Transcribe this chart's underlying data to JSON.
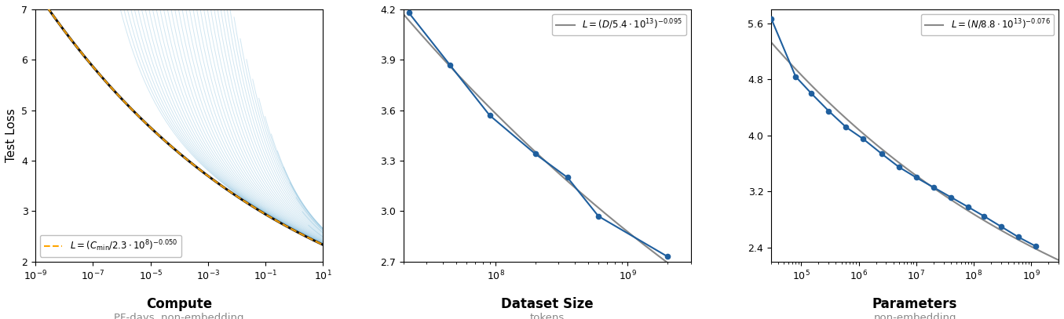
{
  "panel1": {
    "xlabel": "Compute",
    "xlabel_sub": "PF-days, non-embedding",
    "ylabel": "Test Loss",
    "xlim": [
      1e-09,
      10
    ],
    "ylim": [
      2,
      7
    ],
    "yticks": [
      2,
      3,
      4,
      5,
      6,
      7
    ],
    "orange_color": "#FFA500",
    "blue_color": "#7ab8d9",
    "black_color": "#111111",
    "envelope_A": 230000000.0,
    "envelope_exp": -0.05,
    "n_blue_lines": 45
  },
  "panel2": {
    "xlabel": "Dataset Size",
    "xlabel_sub": "tokens",
    "xlim": [
      20000000.0,
      3000000000.0
    ],
    "ylim": [
      2.7,
      4.2
    ],
    "yticks": [
      2.7,
      3.0,
      3.3,
      3.6,
      3.9,
      4.2
    ],
    "data_x": [
      22000000.0,
      45000000.0,
      90000000.0,
      200000000.0,
      350000000.0,
      600000000.0,
      2000000000.0
    ],
    "data_y": [
      4.18,
      3.87,
      3.57,
      3.34,
      3.2,
      2.97,
      2.73
    ],
    "fit_A": 54000000000000.0,
    "fit_exp": -0.095,
    "blue_color": "#1f5f9e",
    "gray_color": "#888888"
  },
  "panel3": {
    "xlabel": "Parameters",
    "xlabel_sub": "non-embedding",
    "xlim": [
      30000.0,
      3000000000.0
    ],
    "ylim": [
      2.2,
      5.8
    ],
    "yticks": [
      2.4,
      3.2,
      4.0,
      4.8,
      5.6
    ],
    "data_x": [
      30000.0,
      80000.0,
      150000.0,
      300000.0,
      600000.0,
      1200000.0,
      2500000.0,
      5000000.0,
      10000000.0,
      20000000.0,
      40000000.0,
      80000000.0,
      150000000.0,
      300000000.0,
      600000000.0,
      1200000000.0
    ],
    "data_y": [
      5.67,
      4.84,
      4.6,
      4.35,
      4.12,
      3.95,
      3.74,
      3.55,
      3.4,
      3.26,
      3.12,
      2.98,
      2.85,
      2.7,
      2.55,
      2.42
    ],
    "fit_A": 88000000000000.0,
    "fit_exp": -0.076,
    "blue_color": "#1f5f9e",
    "gray_color": "#888888"
  }
}
